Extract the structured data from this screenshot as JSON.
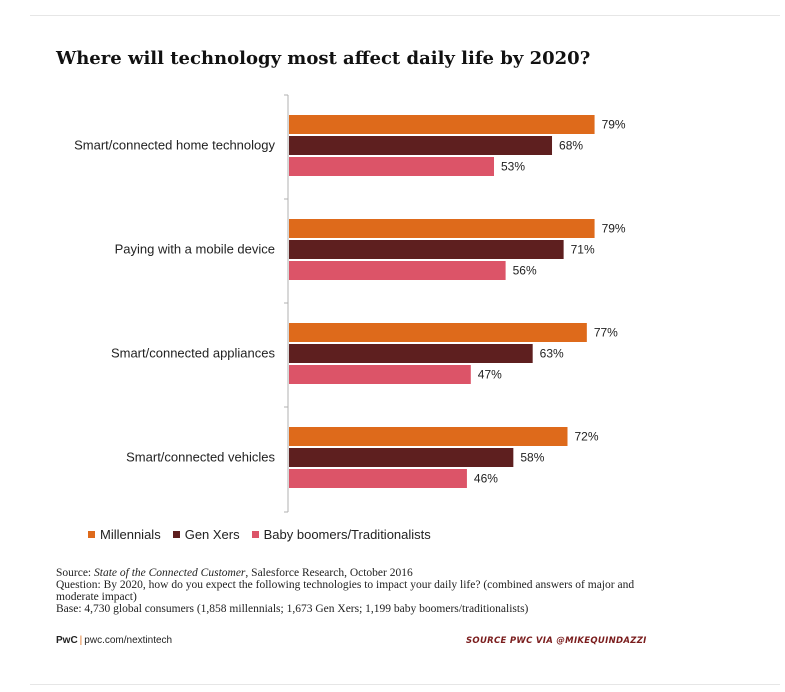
{
  "chart_data": {
    "type": "bar",
    "orientation": "horizontal",
    "title": "Where will technology most affect daily life by 2020?",
    "categories": [
      "Smart/connected home technology",
      "Paying with a mobile device",
      "Smart/connected appliances",
      "Smart/connected vehicles"
    ],
    "series": [
      {
        "name": "Millennials",
        "values": [
          79,
          79,
          77,
          72
        ],
        "color": "#de6a1b"
      },
      {
        "name": "Gen Xers",
        "values": [
          68,
          71,
          63,
          58
        ],
        "color": "#5e1f1f"
      },
      {
        "name": "Baby boomers/Traditionalists",
        "values": [
          53,
          56,
          47,
          46
        ],
        "color": "#dc5468"
      }
    ],
    "value_suffix": "%",
    "xlim": [
      0,
      100
    ],
    "grid": false,
    "legend_position": "bottom-left"
  },
  "footer": {
    "source_prefix": "Source: ",
    "source_italic": "State of the Connected Customer",
    "source_rest": ", Salesforce Research, October 2016",
    "question": "Question: By 2020, how do you expect the following technologies to impact your daily life? (combined answers of major and moderate impact)",
    "base": "Base: 4,730 global consumers (1,858 millennials; 1,673 Gen Xers; 1,199 baby boomers/traditionalists)",
    "brand": "PwC",
    "brand_separator": "|",
    "brand_url": "pwc.com/nextintech",
    "credit": "SOURCE PWC VIA @MIKEQUINDAZZI"
  }
}
